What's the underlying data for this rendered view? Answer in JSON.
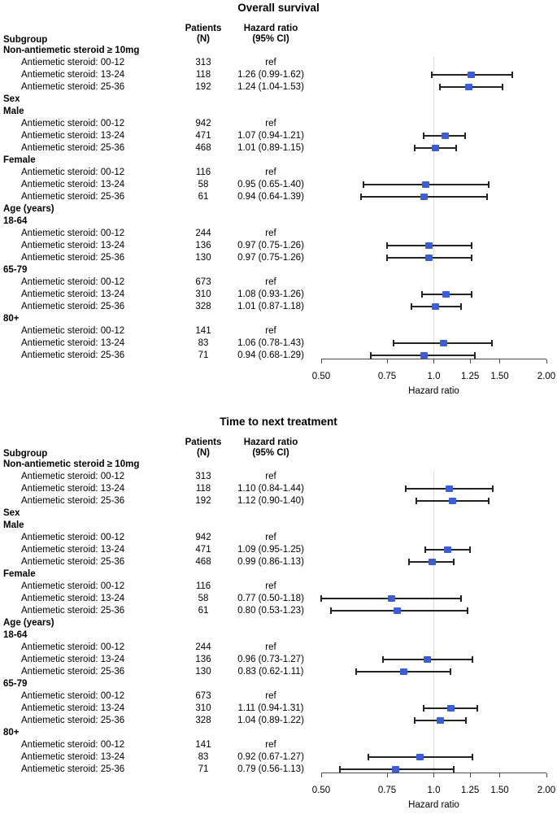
{
  "page": {
    "background": "#FFFFFF"
  },
  "chart_data": [
    {
      "type": "forest",
      "title": "Overall survival",
      "columns": {
        "subgroup": "Subgroup",
        "patients": "Patients\n(N)",
        "hazard_ratio": "Hazard ratio\n(95% CI)"
      },
      "xlabel": "Hazard ratio",
      "x_scale": "log",
      "xlim": [
        0.5,
        2.0
      ],
      "ref_line": 1.0,
      "x_ticks": [
        {
          "v": 0.5,
          "label": "0.50"
        },
        {
          "v": 0.75,
          "label": "0.75"
        },
        {
          "v": 1.0,
          "label": "1.0"
        },
        {
          "v": 1.25,
          "label": "1.25"
        },
        {
          "v": 1.5,
          "label": "1.50"
        },
        {
          "v": 2.0,
          "label": "2.00"
        }
      ],
      "colors": {
        "marker": "#3B5DDB",
        "ci": "#232323",
        "ref_line": "#DCDCDC",
        "axis": "#4B4B4B"
      },
      "rows": [
        {
          "type": "group",
          "label": "Non-antiemetic steroid ≥ 10mg"
        },
        {
          "type": "item",
          "label": "Antiemetic steroid: 00-12",
          "n": "313",
          "hr": "ref"
        },
        {
          "type": "item",
          "label": "Antiemetic steroid: 13-24",
          "n": "118",
          "hr": "1.26 (0.99-1.62)",
          "est": 1.26,
          "lo": 0.99,
          "hi": 1.62
        },
        {
          "type": "item",
          "label": "Antiemetic steroid: 25-36",
          "n": "192",
          "hr": "1.24 (1.04-1.53)",
          "est": 1.24,
          "lo": 1.04,
          "hi": 1.53
        },
        {
          "type": "group",
          "label": "Sex"
        },
        {
          "type": "group",
          "label": "Male"
        },
        {
          "type": "item",
          "label": "Antiemetic steroid: 00-12",
          "n": "942",
          "hr": "ref"
        },
        {
          "type": "item",
          "label": "Antiemetic steroid: 13-24",
          "n": "471",
          "hr": "1.07 (0.94-1.21)",
          "est": 1.07,
          "lo": 0.94,
          "hi": 1.21
        },
        {
          "type": "item",
          "label": "Antiemetic steroid: 25-36",
          "n": "468",
          "hr": "1.01 (0.89-1.15)",
          "est": 1.01,
          "lo": 0.89,
          "hi": 1.15
        },
        {
          "type": "group",
          "label": "Female"
        },
        {
          "type": "item",
          "label": "Antiemetic steroid: 00-12",
          "n": "116",
          "hr": "ref"
        },
        {
          "type": "item",
          "label": "Antiemetic steroid: 13-24",
          "n": "58",
          "hr": "0.95 (0.65-1.40)",
          "est": 0.95,
          "lo": 0.65,
          "hi": 1.4
        },
        {
          "type": "item",
          "label": "Antiemetic steroid: 25-36",
          "n": "61",
          "hr": "0.94 (0.64-1.39)",
          "est": 0.94,
          "lo": 0.64,
          "hi": 1.39
        },
        {
          "type": "group",
          "label": "Age (years)"
        },
        {
          "type": "group",
          "label": "18-64"
        },
        {
          "type": "item",
          "label": "Antiemetic steroid: 00-12",
          "n": "244",
          "hr": "ref"
        },
        {
          "type": "item",
          "label": "Antiemetic steroid: 13-24",
          "n": "136",
          "hr": "0.97 (0.75-1.26)",
          "est": 0.97,
          "lo": 0.75,
          "hi": 1.26
        },
        {
          "type": "item",
          "label": "Antiemetic steroid: 25-36",
          "n": "130",
          "hr": "0.97 (0.75-1.26)",
          "est": 0.97,
          "lo": 0.75,
          "hi": 1.26
        },
        {
          "type": "group",
          "label": "65-79"
        },
        {
          "type": "item",
          "label": "Antiemetic steroid: 00-12",
          "n": "673",
          "hr": "ref"
        },
        {
          "type": "item",
          "label": "Antiemetic steroid: 13-24",
          "n": "310",
          "hr": "1.08 (0.93-1.26)",
          "est": 1.08,
          "lo": 0.93,
          "hi": 1.26
        },
        {
          "type": "item",
          "label": "Antiemetic steroid: 25-36",
          "n": "328",
          "hr": "1.01 (0.87-1.18)",
          "est": 1.01,
          "lo": 0.87,
          "hi": 1.18
        },
        {
          "type": "group",
          "label": "80+"
        },
        {
          "type": "item",
          "label": "Antiemetic steroid: 00-12",
          "n": "141",
          "hr": "ref"
        },
        {
          "type": "item",
          "label": "Antiemetic steroid: 13-24",
          "n": "83",
          "hr": "1.06 (0.78-1.43)",
          "est": 1.06,
          "lo": 0.78,
          "hi": 1.43
        },
        {
          "type": "item",
          "label": "Antiemetic steroid: 25-36",
          "n": "71",
          "hr": "0.94 (0.68-1.29)",
          "est": 0.94,
          "lo": 0.68,
          "hi": 1.29
        }
      ]
    },
    {
      "type": "forest",
      "title": "Time to next treatment",
      "columns": {
        "subgroup": "Subgroup",
        "patients": "Patients\n(N)",
        "hazard_ratio": "Hazard ratio\n(95% CI)"
      },
      "xlabel": "Hazard ratio",
      "x_scale": "log",
      "xlim": [
        0.5,
        2.0
      ],
      "ref_line": 1.0,
      "x_ticks": [
        {
          "v": 0.5,
          "label": "0.50"
        },
        {
          "v": 0.75,
          "label": "0.75"
        },
        {
          "v": 1.0,
          "label": "1.0"
        },
        {
          "v": 1.25,
          "label": "1.25"
        },
        {
          "v": 1.5,
          "label": "1.50"
        },
        {
          "v": 2.0,
          "label": "2.00"
        }
      ],
      "colors": {
        "marker": "#3B5DDB",
        "ci": "#232323",
        "ref_line": "#DCDCDC",
        "axis": "#4B4B4B"
      },
      "rows": [
        {
          "type": "group",
          "label": "Non-antiemetic steroid ≥ 10mg"
        },
        {
          "type": "item",
          "label": "Antiemetic steroid: 00-12",
          "n": "313",
          "hr": "ref"
        },
        {
          "type": "item",
          "label": "Antiemetic steroid: 13-24",
          "n": "118",
          "hr": "1.10 (0.84-1.44)",
          "est": 1.1,
          "lo": 0.84,
          "hi": 1.44
        },
        {
          "type": "item",
          "label": "Antiemetic steroid: 25-36",
          "n": "192",
          "hr": "1.12 (0.90-1.40)",
          "est": 1.12,
          "lo": 0.9,
          "hi": 1.4
        },
        {
          "type": "group",
          "label": "Sex"
        },
        {
          "type": "group",
          "label": "Male"
        },
        {
          "type": "item",
          "label": "Antiemetic steroid: 00-12",
          "n": "942",
          "hr": "ref"
        },
        {
          "type": "item",
          "label": "Antiemetic steroid: 13-24",
          "n": "471",
          "hr": "1.09 (0.95-1.25)",
          "est": 1.09,
          "lo": 0.95,
          "hi": 1.25
        },
        {
          "type": "item",
          "label": "Antiemetic steroid: 25-36",
          "n": "468",
          "hr": "0.99 (0.86-1.13)",
          "est": 0.99,
          "lo": 0.86,
          "hi": 1.13
        },
        {
          "type": "group",
          "label": "Female"
        },
        {
          "type": "item",
          "label": "Antiemetic steroid: 00-12",
          "n": "116",
          "hr": "ref"
        },
        {
          "type": "item",
          "label": "Antiemetic steroid: 13-24",
          "n": "58",
          "hr": "0.77 (0.50-1.18)",
          "est": 0.77,
          "lo": 0.5,
          "hi": 1.18
        },
        {
          "type": "item",
          "label": "Antiemetic steroid: 25-36",
          "n": "61",
          "hr": "0.80 (0.53-1.23)",
          "est": 0.8,
          "lo": 0.53,
          "hi": 1.23
        },
        {
          "type": "group",
          "label": "Age (years)"
        },
        {
          "type": "group",
          "label": "18-64"
        },
        {
          "type": "item",
          "label": "Antiemetic steroid: 00-12",
          "n": "244",
          "hr": "ref"
        },
        {
          "type": "item",
          "label": "Antiemetic steroid: 13-24",
          "n": "136",
          "hr": "0.96 (0.73-1.27)",
          "est": 0.96,
          "lo": 0.73,
          "hi": 1.27
        },
        {
          "type": "item",
          "label": "Antiemetic steroid: 25-36",
          "n": "130",
          "hr": "0.83 (0.62-1.11)",
          "est": 0.83,
          "lo": 0.62,
          "hi": 1.11
        },
        {
          "type": "group",
          "label": "65-79"
        },
        {
          "type": "item",
          "label": "Antiemetic steroid: 00-12",
          "n": "673",
          "hr": "ref"
        },
        {
          "type": "item",
          "label": "Antiemetic steroid: 13-24",
          "n": "310",
          "hr": "1.11 (0.94-1.31)",
          "est": 1.11,
          "lo": 0.94,
          "hi": 1.31
        },
        {
          "type": "item",
          "label": "Antiemetic steroid: 25-36",
          "n": "328",
          "hr": "1.04 (0.89-1.22)",
          "est": 1.04,
          "lo": 0.89,
          "hi": 1.22
        },
        {
          "type": "group",
          "label": "80+"
        },
        {
          "type": "item",
          "label": "Antiemetic steroid: 00-12",
          "n": "141",
          "hr": "ref"
        },
        {
          "type": "item",
          "label": "Antiemetic steroid: 13-24",
          "n": "83",
          "hr": "0.92 (0.67-1.27)",
          "est": 0.92,
          "lo": 0.67,
          "hi": 1.27
        },
        {
          "type": "item",
          "label": "Antiemetic steroid: 25-36",
          "n": "71",
          "hr": "0.79 (0.56-1.13)",
          "est": 0.79,
          "lo": 0.56,
          "hi": 1.13
        }
      ]
    }
  ]
}
